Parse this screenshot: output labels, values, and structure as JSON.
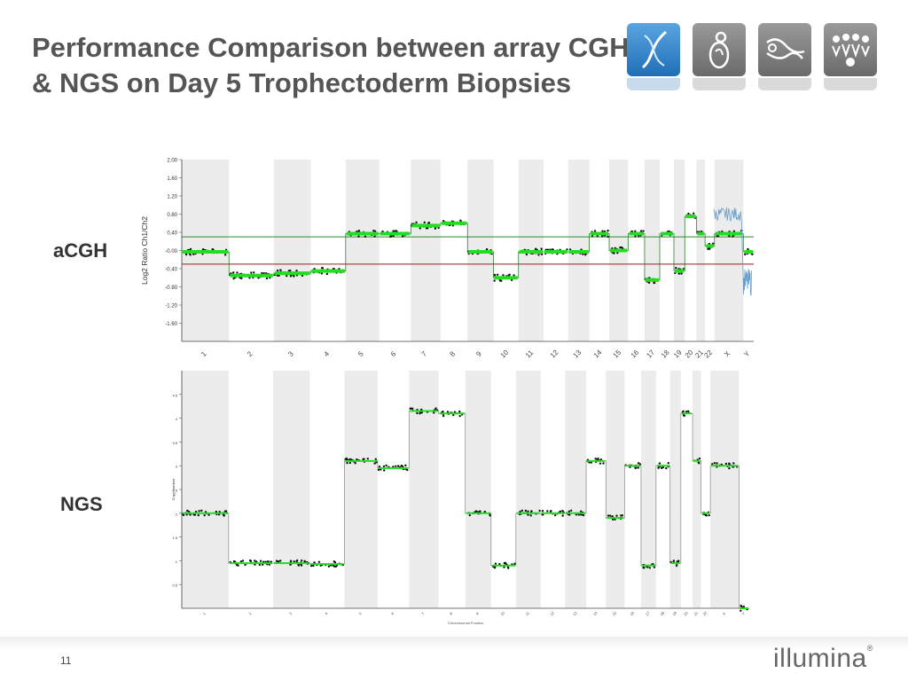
{
  "slide": {
    "title": "Performance Comparison between array CGH & NGS on Day 5 Trophectoderm Biopsies",
    "page_number": "11",
    "logo_text": "illumina",
    "logo_mark": "®"
  },
  "header_icons": [
    {
      "name": "dna-helix-icon",
      "color": "#2f7fc6"
    },
    {
      "name": "embryo-icon",
      "color": "#777777"
    },
    {
      "name": "cell-icon",
      "color": "#777777"
    },
    {
      "name": "crowd-icon",
      "color": "#777777"
    }
  ],
  "labels": {
    "acgh": "aCGH",
    "ngs": "NGS"
  },
  "colors": {
    "segment": "#22dd22",
    "points": "#111111",
    "band": "#ececec",
    "upper_threshold": "#2a8a2a",
    "lower_threshold": "#8a2222",
    "y_probe": "#6a9ec9"
  },
  "chart_data": [
    {
      "type": "scatter",
      "name_label": "aCGH",
      "ylabel": "Log2 Ratio Ch1/Ch2",
      "yticks": [
        "2.00",
        "1.60",
        "1.20",
        "0.80",
        "0.40",
        "-0.00",
        "-0.40",
        "-0.80",
        "-1.20",
        "-1.60"
      ],
      "ylim": [
        -2.0,
        2.0
      ],
      "thresholds": [
        0.3,
        -0.3
      ],
      "chromosomes": [
        "1",
        "2",
        "3",
        "4",
        "5",
        "6",
        "7",
        "8",
        "9",
        "10",
        "11",
        "12",
        "13",
        "14",
        "15",
        "16",
        "17",
        "18",
        "19",
        "20",
        "21",
        "22",
        "X",
        "Y"
      ],
      "segments": [
        {
          "chr": "1",
          "value": -0.03
        },
        {
          "chr": "2",
          "value": -0.55
        },
        {
          "chr": "3",
          "value": -0.5
        },
        {
          "chr": "4",
          "value": -0.45
        },
        {
          "chr": "5",
          "value": 0.37
        },
        {
          "chr": "6",
          "value": 0.37
        },
        {
          "chr": "7",
          "value": 0.55
        },
        {
          "chr": "8",
          "value": 0.6
        },
        {
          "chr": "9",
          "value": -0.03
        },
        {
          "chr": "10",
          "value": -0.6
        },
        {
          "chr": "11",
          "value": -0.03
        },
        {
          "chr": "12",
          "value": -0.03
        },
        {
          "chr": "13",
          "value": -0.03
        },
        {
          "chr": "14",
          "value": 0.37
        },
        {
          "chr": "15",
          "value": 0.0
        },
        {
          "chr": "16",
          "value": 0.37
        },
        {
          "chr": "17",
          "value": -0.65
        },
        {
          "chr": "18",
          "value": 0.37
        },
        {
          "chr": "19",
          "value": -0.45
        },
        {
          "chr": "20",
          "value": 0.75
        },
        {
          "chr": "21",
          "value": 0.37
        },
        {
          "chr": "22",
          "value": 0.1
        },
        {
          "chr": "X",
          "value": 0.37
        },
        {
          "chr": "Y",
          "value": -0.03
        }
      ]
    },
    {
      "type": "scatter",
      "name_label": "NGS",
      "ylabel": "Copy Number",
      "xlabel": "Chromosomal Position",
      "yticks": [
        "4.5",
        "4",
        "3.5",
        "3",
        "2.5",
        "2",
        "1.5",
        "1",
        "0.5"
      ],
      "ylim": [
        0,
        5
      ],
      "chromosomes": [
        "1",
        "2",
        "3",
        "4",
        "5",
        "6",
        "7",
        "8",
        "9",
        "10",
        "11",
        "12",
        "13",
        "14",
        "15",
        "16",
        "17",
        "18",
        "19",
        "20",
        "21",
        "22",
        "X",
        "Y"
      ],
      "segments": [
        {
          "chr": "1",
          "value": 2.0
        },
        {
          "chr": "2",
          "value": 0.95
        },
        {
          "chr": "3",
          "value": 0.95
        },
        {
          "chr": "4",
          "value": 0.93
        },
        {
          "chr": "5",
          "value": 3.1
        },
        {
          "chr": "6",
          "value": 2.95
        },
        {
          "chr": "7",
          "value": 4.15
        },
        {
          "chr": "8",
          "value": 4.1
        },
        {
          "chr": "9",
          "value": 2.0
        },
        {
          "chr": "10",
          "value": 0.9
        },
        {
          "chr": "11",
          "value": 2.0
        },
        {
          "chr": "12",
          "value": 2.0
        },
        {
          "chr": "13",
          "value": 2.0
        },
        {
          "chr": "14",
          "value": 3.1
        },
        {
          "chr": "15",
          "value": 1.9
        },
        {
          "chr": "16",
          "value": 3.0
        },
        {
          "chr": "17",
          "value": 0.9
        },
        {
          "chr": "18",
          "value": 3.0
        },
        {
          "chr": "19",
          "value": 0.95
        },
        {
          "chr": "20",
          "value": 4.1
        },
        {
          "chr": "21",
          "value": 3.1
        },
        {
          "chr": "22",
          "value": 2.0
        },
        {
          "chr": "X",
          "value": 3.0
        },
        {
          "chr": "Y",
          "value": 0.0
        }
      ]
    }
  ]
}
